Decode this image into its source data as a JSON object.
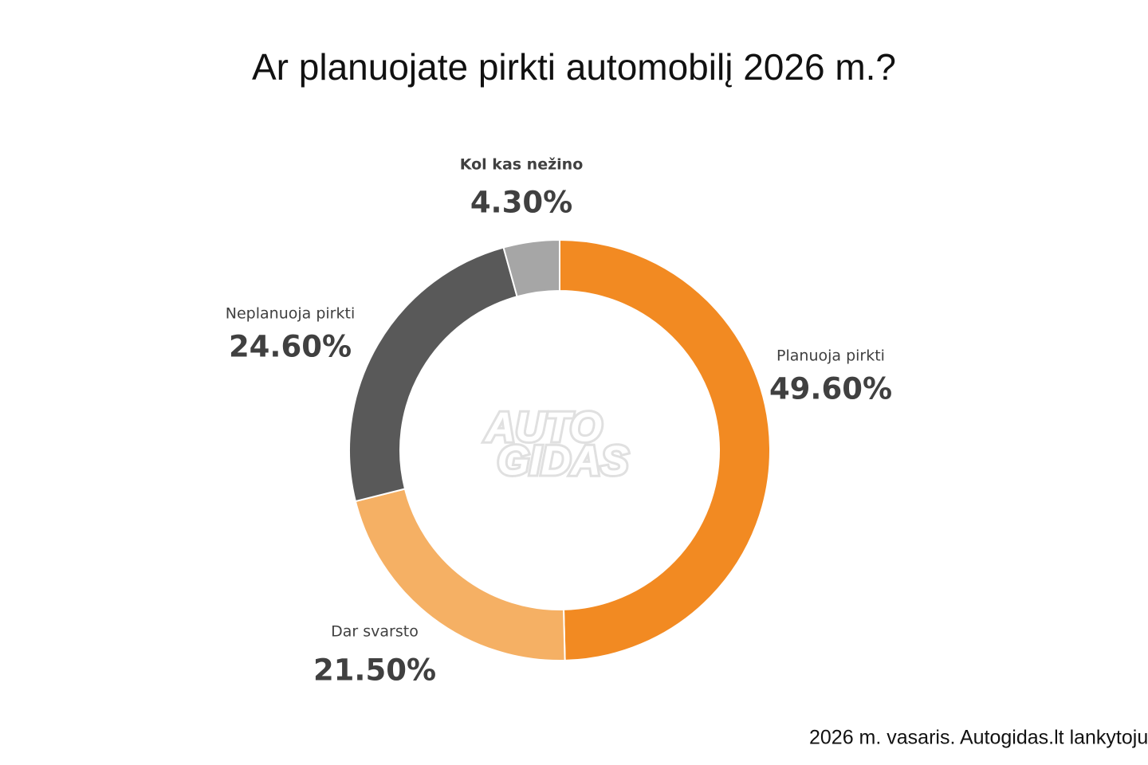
{
  "chart_data": {
    "type": "donut",
    "title": "Ar planuojate pirkti automobilį 2026 m.?",
    "categories": [
      "Planuoja pirkti",
      "Dar svarsto",
      "Neplanuoja pirkti",
      "Kol kas nežino"
    ],
    "values": [
      49.6,
      21.5,
      24.6,
      4.3
    ],
    "value_labels": [
      "49.60%",
      "21.50%",
      "24.60%",
      "4.30%"
    ],
    "colors": [
      "#f28a22",
      "#f5b064",
      "#595959",
      "#a6a6a6"
    ],
    "watermark": [
      "AUTO",
      "GIDAS"
    ],
    "source": "2026 m. vasaris. Autogidas.lt lankytoju"
  }
}
